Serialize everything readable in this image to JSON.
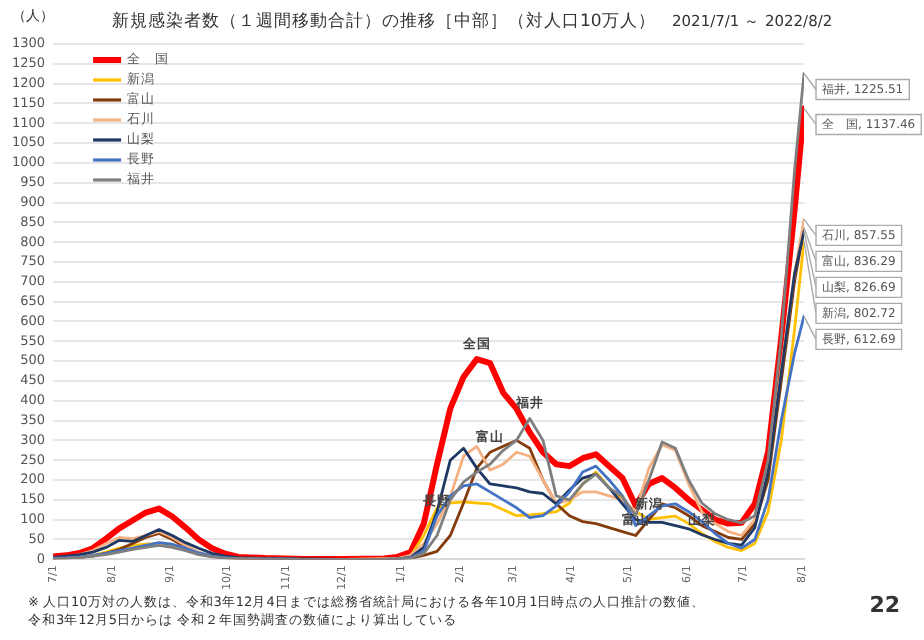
{
  "chart_data": {
    "type": "line",
    "title": "新規感染者数（１週間移動合計）の推移［中部］（対人口10万人）",
    "subtitle": "2021/7/1 ～ 2022/8/2",
    "ylabel": "（人）",
    "x": [
      "2021-07-01",
      "2021-07-08",
      "2021-07-15",
      "2021-07-22",
      "2021-07-29",
      "2021-08-05",
      "2021-08-12",
      "2021-08-19",
      "2021-08-26",
      "2021-09-02",
      "2021-09-09",
      "2021-09-16",
      "2021-09-23",
      "2021-09-30",
      "2021-10-07",
      "2021-10-21",
      "2021-11-11",
      "2021-12-02",
      "2021-12-23",
      "2021-12-30",
      "2022-01-06",
      "2022-01-13",
      "2022-01-20",
      "2022-01-27",
      "2022-02-03",
      "2022-02-10",
      "2022-02-17",
      "2022-02-24",
      "2022-03-03",
      "2022-03-10",
      "2022-03-17",
      "2022-03-24",
      "2022-03-31",
      "2022-04-07",
      "2022-04-14",
      "2022-04-21",
      "2022-04-28",
      "2022-05-05",
      "2022-05-12",
      "2022-05-19",
      "2022-05-26",
      "2022-06-02",
      "2022-06-09",
      "2022-06-16",
      "2022-06-23",
      "2022-06-30",
      "2022-07-07",
      "2022-07-14",
      "2022-07-21",
      "2022-07-28",
      "2022-08-02"
    ],
    "xlim": [
      "2021-07-01",
      "2022-08-02"
    ],
    "xticks": [
      {
        "value": "2021-07-01",
        "label": "7/1"
      },
      {
        "value": "2021-08-01",
        "label": "8/1"
      },
      {
        "value": "2021-09-01",
        "label": "9/1"
      },
      {
        "value": "2021-10-01",
        "label": "10/1"
      },
      {
        "value": "2021-11-01",
        "label": "11/1"
      },
      {
        "value": "2021-12-01",
        "label": "12/1"
      },
      {
        "value": "2022-01-01",
        "label": "1/1"
      },
      {
        "value": "2022-02-01",
        "label": "2/1"
      },
      {
        "value": "2022-03-01",
        "label": "3/1"
      },
      {
        "value": "2022-04-01",
        "label": "4/1"
      },
      {
        "value": "2022-05-01",
        "label": "5/1"
      },
      {
        "value": "2022-06-01",
        "label": "6/1"
      },
      {
        "value": "2022-07-01",
        "label": "7/1"
      },
      {
        "value": "2022-08-01",
        "label": "8/1"
      }
    ],
    "ylim": [
      0,
      1300
    ],
    "yticks": [
      0,
      50,
      100,
      150,
      200,
      250,
      300,
      350,
      400,
      450,
      500,
      550,
      600,
      650,
      700,
      750,
      800,
      850,
      900,
      950,
      1000,
      1050,
      1100,
      1150,
      1200,
      1250,
      1300
    ],
    "grid": "y",
    "legend": "top left",
    "marker": "none",
    "line_style": "solid",
    "series": [
      {
        "name": "全　国",
        "color": "#ff0000",
        "values": [
          7,
          10,
          16,
          28,
          52,
          78,
          98,
          118,
          128,
          108,
          80,
          50,
          28,
          14,
          6,
          3,
          1,
          1,
          2,
          6,
          18,
          90,
          240,
          380,
          460,
          505,
          495,
          420,
          380,
          320,
          270,
          240,
          235,
          255,
          265,
          235,
          205,
          135,
          190,
          205,
          180,
          150,
          125,
          100,
          90,
          92,
          140,
          270,
          560,
          880,
          1137.46
        ],
        "value_labels": [
          null,
          null,
          null,
          null,
          null,
          null,
          null,
          null,
          null,
          null,
          null,
          null,
          null,
          null,
          null,
          null,
          null,
          null,
          null,
          null,
          null,
          null,
          null,
          null,
          null,
          null,
          null,
          null,
          null,
          null,
          null,
          null,
          null,
          null,
          null,
          null,
          null,
          null,
          null,
          null,
          null,
          null,
          null,
          null,
          null,
          null,
          null,
          null,
          null,
          null,
          "全　国, 1137.46"
        ]
      },
      {
        "name": "新潟",
        "color": "#ffc000",
        "values": [
          null,
          null,
          6,
          10,
          18,
          28,
          35,
          38,
          40,
          35,
          25,
          14,
          8,
          4,
          2,
          1,
          0,
          0,
          1,
          2,
          8,
          60,
          130,
          142,
          145,
          142,
          140,
          125,
          110,
          112,
          115,
          120,
          142,
          190,
          220,
          180,
          150,
          120,
          101,
          105,
          109,
          90,
          65,
          45,
          30,
          22,
          40,
          120,
          300,
          580,
          802.72
        ],
        "value_labels": [
          null,
          null,
          null,
          null,
          null,
          null,
          null,
          null,
          null,
          null,
          null,
          null,
          null,
          null,
          null,
          null,
          null,
          null,
          null,
          null,
          null,
          null,
          null,
          null,
          null,
          null,
          null,
          null,
          null,
          null,
          null,
          null,
          null,
          null,
          null,
          null,
          null,
          null,
          null,
          null,
          null,
          null,
          null,
          null,
          null,
          null,
          null,
          null,
          null,
          null,
          "新潟, 802.72"
        ]
      },
      {
        "name": "富山",
        "color": "#843c0c",
        "values": [
          2,
          3,
          5,
          8,
          15,
          25,
          40,
          55,
          65,
          50,
          30,
          15,
          8,
          4,
          2,
          1,
          0,
          0,
          0,
          1,
          3,
          10,
          20,
          60,
          142,
          230,
          270,
          285,
          300,
          280,
          200,
          140,
          110,
          95,
          90,
          80,
          70,
          60,
          100,
          140,
          130,
          110,
          85,
          70,
          55,
          50,
          90,
          200,
          450,
          700,
          836.29
        ],
        "value_labels": [
          null,
          null,
          null,
          null,
          null,
          null,
          null,
          null,
          null,
          null,
          null,
          null,
          null,
          null,
          null,
          null,
          null,
          null,
          null,
          null,
          null,
          null,
          null,
          null,
          null,
          null,
          null,
          null,
          null,
          null,
          null,
          null,
          null,
          null,
          null,
          null,
          null,
          null,
          null,
          null,
          null,
          null,
          null,
          null,
          null,
          null,
          null,
          null,
          null,
          null,
          "富山, 836.29"
        ]
      },
      {
        "name": "石川",
        "color": "#f4b183",
        "values": [
          4,
          6,
          12,
          22,
          40,
          55,
          52,
          60,
          70,
          55,
          35,
          18,
          8,
          4,
          2,
          1,
          0,
          0,
          1,
          2,
          10,
          40,
          90,
          158,
          260,
          285,
          225,
          240,
          270,
          260,
          200,
          140,
          150,
          170,
          170,
          160,
          150,
          120,
          230,
          289,
          275,
          190,
          120,
          90,
          70,
          60,
          100,
          230,
          480,
          720,
          857.55
        ],
        "value_labels": [
          null,
          null,
          null,
          null,
          null,
          null,
          null,
          null,
          null,
          null,
          null,
          null,
          null,
          null,
          null,
          null,
          null,
          null,
          null,
          null,
          null,
          null,
          null,
          null,
          null,
          null,
          null,
          null,
          null,
          null,
          null,
          null,
          null,
          null,
          null,
          null,
          null,
          null,
          null,
          null,
          null,
          null,
          null,
          null,
          null,
          null,
          null,
          null,
          null,
          null,
          "石川, 857.55"
        ]
      },
      {
        "name": "山梨",
        "color": "#1f3864",
        "values": [
          5,
          8,
          12,
          18,
          30,
          48,
          45,
          60,
          75,
          60,
          42,
          28,
          15,
          8,
          4,
          2,
          1,
          0,
          0,
          1,
          5,
          30,
          120,
          250,
          280,
          230,
          190,
          185,
          180,
          170,
          166,
          140,
          175,
          205,
          215,
          180,
          140,
          100,
          93,
          93,
          85,
          77,
          62,
          50,
          40,
          36,
          80,
          220,
          470,
          720,
          826.69
        ],
        "value_labels": [
          null,
          null,
          null,
          null,
          null,
          null,
          null,
          null,
          null,
          null,
          null,
          null,
          null,
          null,
          null,
          null,
          null,
          null,
          null,
          null,
          null,
          null,
          null,
          null,
          null,
          null,
          null,
          null,
          null,
          null,
          null,
          null,
          null,
          null,
          null,
          null,
          null,
          null,
          null,
          null,
          null,
          null,
          null,
          null,
          null,
          null,
          null,
          null,
          null,
          null,
          "山梨, 826.69"
        ]
      },
      {
        "name": "長野",
        "color": "#4472c4",
        "values": [
          3,
          4,
          6,
          10,
          15,
          22,
          28,
          35,
          42,
          38,
          28,
          16,
          8,
          4,
          2,
          1,
          0,
          0,
          0,
          1,
          4,
          20,
          110,
          160,
          185,
          190,
          170,
          150,
          130,
          105,
          110,
          135,
          170,
          220,
          235,
          200,
          160,
          85,
          110,
          135,
          140,
          120,
          95,
          65,
          40,
          28,
          50,
          150,
          350,
          520,
          612.69
        ],
        "value_labels": [
          null,
          null,
          null,
          null,
          null,
          null,
          null,
          null,
          null,
          null,
          null,
          null,
          null,
          null,
          null,
          null,
          null,
          null,
          null,
          null,
          null,
          null,
          null,
          null,
          null,
          null,
          null,
          null,
          null,
          null,
          null,
          null,
          null,
          null,
          null,
          null,
          null,
          null,
          null,
          null,
          null,
          null,
          null,
          null,
          null,
          null,
          null,
          null,
          null,
          null,
          "長野, 612.69"
        ]
      },
      {
        "name": "福井",
        "color": "#7f7f7f",
        "values": [
          2,
          3,
          5,
          8,
          12,
          18,
          25,
          30,
          35,
          30,
          22,
          12,
          6,
          3,
          2,
          1,
          0,
          0,
          0,
          1,
          3,
          15,
          60,
          150,
          195,
          220,
          240,
          275,
          300,
          355,
          300,
          160,
          150,
          190,
          215,
          180,
          158,
          110,
          200,
          296,
          280,
          200,
          142,
          115,
          100,
          92,
          110,
          250,
          560,
          980,
          1225.51
        ],
        "value_labels": [
          null,
          null,
          null,
          null,
          null,
          null,
          null,
          null,
          null,
          null,
          null,
          null,
          null,
          null,
          null,
          null,
          null,
          null,
          null,
          null,
          null,
          null,
          null,
          null,
          null,
          null,
          null,
          null,
          null,
          null,
          null,
          null,
          null,
          null,
          null,
          null,
          null,
          null,
          null,
          null,
          null,
          null,
          null,
          null,
          null,
          null,
          null,
          null,
          null,
          null,
          "福井, 1225.51"
        ]
      }
    ],
    "annotations": [
      {
        "text": "全国",
        "x": "2022-02-10",
        "y": 505
      },
      {
        "text": "富山",
        "x": "2022-02-17",
        "y": 270
      },
      {
        "text": "福井",
        "x": "2022-03-10",
        "y": 355
      },
      {
        "text": "長野",
        "x": "2022-01-20",
        "y": 110
      },
      {
        "text": "新潟",
        "x": "2022-05-12",
        "y": 101
      },
      {
        "text": "富山",
        "x": "2022-05-05",
        "y": 60
      },
      {
        "text": "山梨",
        "x": "2022-06-09",
        "y": 62
      },
      "※ 人口10万対の人数は、令和3年12月4日までは総務省統計局における各年10月1日時点の人口推計の数値、",
      "令和3年12月5日からは 令和２年国勢調査の数値により算出している",
      "22"
    ]
  }
}
